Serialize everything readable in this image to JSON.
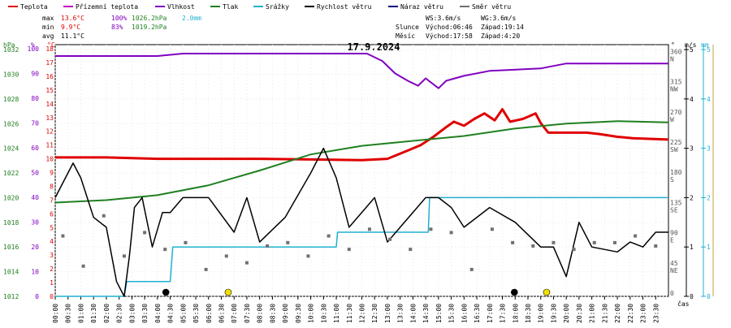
{
  "legend": [
    {
      "label": "Teplota",
      "color": "#e00000"
    },
    {
      "label": "Přízemní teplota",
      "color": "#c000c0"
    },
    {
      "label": "Vlhkost",
      "color": "#8000c0"
    },
    {
      "label": "Tlak",
      "color": "#208020"
    },
    {
      "label": "Srážky",
      "color": "#20b0d0"
    },
    {
      "label": "Rychlost větru",
      "color": "#000000"
    },
    {
      "label": "Náraz větru",
      "color": "#000080"
    },
    {
      "label": "Směr větru",
      "color": "#707070"
    }
  ],
  "stats": {
    "max_label": "max",
    "max_temp": "13.6°C",
    "max_hum": "100%",
    "max_press": "1026.2hPa",
    "max_rain": "2.0mm",
    "min_label": "min",
    "min_temp": "9.9°C",
    "min_hum": "83%",
    "min_press": "1019.2hPa",
    "avg_label": "avg",
    "avg_temp": "11.1°C"
  },
  "astro": {
    "ws": "WS:3.6m/s",
    "wg": "WG:3.6m/s",
    "sun_label": "Slunce",
    "sunrise": "Východ:06:46",
    "sunset": "Západ:19:14",
    "moon_label": "Měsíc",
    "moonrise": "Východ:17:58",
    "moonset": "Západ:4:20"
  },
  "axis_units": {
    "hpa": "hPa",
    "pct": "%",
    "degc": "°C",
    "deg": "°",
    "ms": "m/s",
    "mm": "mm",
    "time": "čas"
  },
  "chart_data": {
    "type": "line",
    "title": "17.9.2024",
    "x": [
      "00:00",
      "00:30",
      "01:00",
      "01:30",
      "02:00",
      "02:30",
      "03:00",
      "03:30",
      "04:00",
      "04:30",
      "05:00",
      "05:30",
      "06:00",
      "06:30",
      "07:00",
      "07:30",
      "08:00",
      "08:30",
      "09:00",
      "09:30",
      "10:00",
      "10:30",
      "11:00",
      "11:30",
      "12:00",
      "12:30",
      "13:00",
      "13:30",
      "14:00",
      "14:30",
      "15:00",
      "15:30",
      "16:00",
      "16:30",
      "17:00",
      "17:30",
      "18:00",
      "18:30",
      "19:00",
      "19:30",
      "20:00",
      "20:30",
      "21:00",
      "21:30",
      "22:00",
      "22:30",
      "23:00",
      "23:30"
    ],
    "axes": {
      "pressure": {
        "unit": "hPa",
        "ticks": [
          1012,
          1014,
          1016,
          1018,
          1020,
          1022,
          1024,
          1026,
          1028,
          1030,
          1032
        ]
      },
      "humidity": {
        "unit": "%",
        "ticks": [
          0,
          10,
          20,
          30,
          40,
          50,
          60,
          70,
          80,
          90,
          100
        ]
      },
      "temperature": {
        "unit": "°C",
        "ticks": [
          0,
          1,
          2,
          3,
          4,
          5,
          6,
          7,
          8,
          9,
          10,
          11,
          12,
          13,
          14,
          15,
          16,
          17,
          18
        ]
      },
      "direction": {
        "unit": "°",
        "ticks": [
          0,
          45,
          90,
          135,
          180,
          225,
          270,
          315,
          360
        ],
        "labels": [
          "",
          "NE",
          "E",
          "SE",
          "S",
          "SW",
          "W",
          "NW",
          "N"
        ]
      },
      "wind": {
        "unit": "m/s",
        "ticks": [
          0,
          1,
          2,
          3,
          4,
          5
        ]
      },
      "rain": {
        "unit": "mm",
        "ticks": [
          0,
          1,
          2,
          3,
          4,
          5
        ]
      }
    },
    "series": [
      {
        "name": "Teplota",
        "axis": "temperature",
        "color": "#e00000",
        "points": [
          [
            0,
            10.1
          ],
          [
            2,
            10.1
          ],
          [
            4,
            10.0
          ],
          [
            6,
            10.0
          ],
          [
            8,
            10.0
          ],
          [
            10,
            9.95
          ],
          [
            12,
            9.9
          ],
          [
            13,
            10.0
          ],
          [
            13.8,
            10.6
          ],
          [
            14.3,
            11.0
          ],
          [
            14.8,
            11.6
          ],
          [
            15.3,
            12.3
          ],
          [
            15.6,
            12.7
          ],
          [
            16,
            12.4
          ],
          [
            16.4,
            12.9
          ],
          [
            16.8,
            13.3
          ],
          [
            17.2,
            12.8
          ],
          [
            17.5,
            13.6
          ],
          [
            17.8,
            12.7
          ],
          [
            18.3,
            12.9
          ],
          [
            18.8,
            13.3
          ],
          [
            19,
            12.6
          ],
          [
            19.3,
            11.9
          ],
          [
            20,
            11.9
          ],
          [
            20.8,
            11.9
          ],
          [
            21.3,
            11.8
          ],
          [
            22,
            11.6
          ],
          [
            22.6,
            11.5
          ],
          [
            24,
            11.4
          ],
          [
            24,
            11.4
          ]
        ]
      },
      {
        "name": "Vlhkost",
        "axis": "humidity",
        "color": "#8000c0",
        "points": [
          [
            0,
            97
          ],
          [
            4,
            97
          ],
          [
            5,
            98
          ],
          [
            10,
            98
          ],
          [
            12.2,
            98
          ],
          [
            12.8,
            95
          ],
          [
            13.3,
            90
          ],
          [
            13.8,
            87
          ],
          [
            14.2,
            85
          ],
          [
            14.5,
            88
          ],
          [
            15,
            84
          ],
          [
            15.3,
            87
          ],
          [
            16,
            89
          ],
          [
            17,
            91
          ],
          [
            19,
            92
          ],
          [
            20,
            94
          ],
          [
            22,
            94
          ],
          [
            24,
            94
          ]
        ]
      },
      {
        "name": "Tlak",
        "axis": "pressure",
        "color": "#208020",
        "points": [
          [
            0,
            1019.6
          ],
          [
            2,
            1019.8
          ],
          [
            4,
            1020.2
          ],
          [
            6,
            1021.0
          ],
          [
            8,
            1022.2
          ],
          [
            10,
            1023.5
          ],
          [
            12,
            1024.2
          ],
          [
            14,
            1024.6
          ],
          [
            16,
            1025.0
          ],
          [
            18,
            1025.6
          ],
          [
            20,
            1026.0
          ],
          [
            22,
            1026.2
          ],
          [
            24,
            1026.1
          ]
        ]
      },
      {
        "name": "Srážky",
        "axis": "rain",
        "color": "#20b0d0",
        "points": [
          [
            0,
            0
          ],
          [
            2.7,
            0
          ],
          [
            2.8,
            0.3
          ],
          [
            4.5,
            0.3
          ],
          [
            4.6,
            1.0
          ],
          [
            7.0,
            1.0
          ],
          [
            11,
            1.0
          ],
          [
            11.05,
            1.3
          ],
          [
            14.6,
            1.3
          ],
          [
            14.65,
            2.0
          ],
          [
            24,
            2.0
          ]
        ]
      },
      {
        "name": "Rychlost větru",
        "axis": "wind",
        "color": "#000000",
        "points": [
          [
            0,
            2.0
          ],
          [
            0.7,
            2.7
          ],
          [
            1.0,
            2.4
          ],
          [
            1.5,
            1.6
          ],
          [
            2.0,
            1.4
          ],
          [
            2.4,
            0.3
          ],
          [
            2.7,
            0.0
          ],
          [
            2.9,
            0.8
          ],
          [
            3.1,
            1.8
          ],
          [
            3.4,
            2.0
          ],
          [
            3.8,
            1.0
          ],
          [
            4.2,
            1.7
          ],
          [
            4.5,
            1.7
          ],
          [
            5.0,
            2.0
          ],
          [
            6.0,
            2.0
          ],
          [
            7.0,
            1.3
          ],
          [
            7.5,
            2.0
          ],
          [
            8.0,
            1.1
          ],
          [
            9.0,
            1.6
          ],
          [
            10.0,
            2.5
          ],
          [
            10.5,
            3.0
          ],
          [
            11.0,
            2.4
          ],
          [
            11.5,
            1.4
          ],
          [
            12.5,
            2.0
          ],
          [
            13.0,
            1.1
          ],
          [
            13.5,
            1.4
          ],
          [
            14.5,
            2.0
          ],
          [
            15.0,
            2.0
          ],
          [
            15.5,
            1.8
          ],
          [
            16.0,
            1.4
          ],
          [
            17.0,
            1.8
          ],
          [
            18.0,
            1.5
          ],
          [
            19.0,
            1.0
          ],
          [
            19.5,
            1.0
          ],
          [
            20.0,
            0.4
          ],
          [
            20.5,
            1.5
          ],
          [
            21.0,
            1.0
          ],
          [
            22.0,
            0.9
          ],
          [
            22.5,
            1.1
          ],
          [
            23.0,
            1.0
          ],
          [
            23.5,
            1.3
          ],
          [
            24,
            1.3
          ]
        ]
      },
      {
        "name": "Směr větru",
        "axis": "direction",
        "color": "#707070",
        "points": [
          [
            0.3,
            90
          ],
          [
            1.1,
            45
          ],
          [
            1.9,
            120
          ],
          [
            2.7,
            60
          ],
          [
            3.5,
            95
          ],
          [
            4.3,
            70
          ],
          [
            5.1,
            80
          ],
          [
            5.9,
            40
          ],
          [
            6.7,
            60
          ],
          [
            7.5,
            50
          ],
          [
            8.3,
            75
          ],
          [
            9.1,
            80
          ],
          [
            9.9,
            60
          ],
          [
            10.7,
            90
          ],
          [
            11.5,
            70
          ],
          [
            12.3,
            100
          ],
          [
            13.1,
            85
          ],
          [
            13.9,
            70
          ],
          [
            14.7,
            100
          ],
          [
            15.5,
            95
          ],
          [
            16.3,
            40
          ],
          [
            17.1,
            100
          ],
          [
            17.9,
            80
          ],
          [
            18.7,
            75
          ],
          [
            19.5,
            80
          ],
          [
            20.3,
            70
          ],
          [
            21.1,
            80
          ],
          [
            21.9,
            80
          ],
          [
            22.7,
            90
          ],
          [
            23.5,
            75
          ]
        ]
      }
    ],
    "markers": [
      {
        "type": "moonset",
        "time": 4.33,
        "color": "#000000"
      },
      {
        "type": "sunrise",
        "time": 6.77,
        "color": "#f0e000"
      },
      {
        "type": "moonrise",
        "time": 17.97,
        "color": "#000000"
      },
      {
        "type": "sunset",
        "time": 19.23,
        "color": "#f0e000"
      }
    ]
  }
}
